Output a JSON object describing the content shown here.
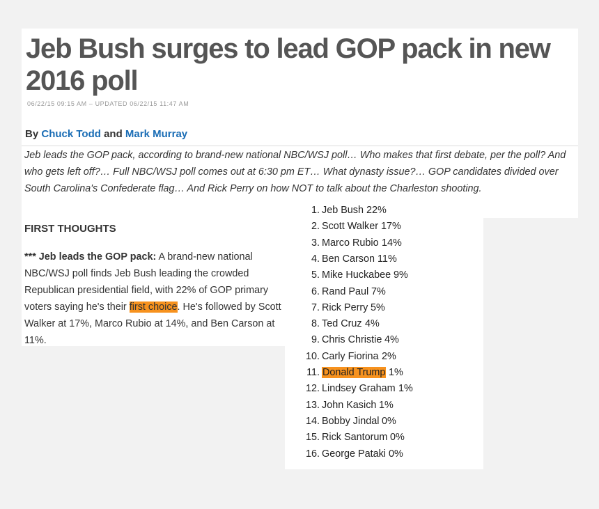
{
  "article": {
    "headline": "Jeb Bush surges to lead GOP pack in new 2016 poll",
    "dateline": "06/22/15 09:15 AM – UPDATED 06/22/15 11:47 AM",
    "byline": {
      "prefix": "By",
      "author1": "Chuck Todd",
      "conjunction": "and",
      "author2": "Mark Murray"
    },
    "dek": "Jeb leads the GOP pack, according to brand-new national NBC/WSJ poll… Who makes that first debate, per the poll? And who gets left off?… Full NBC/WSJ poll comes out at 6:30 pm ET… What dynasty issue?… GOP candidates divided over South Carolina's Confederate flag… And Rick Perry on how NOT to talk about the Charleston shooting."
  },
  "body": {
    "section_heading": "FIRST THOUGHTS",
    "lead_bold": "*** Jeb leads the GOP pack:",
    "text_before": " A brand-new national NBC/WSJ poll finds Jeb Bush leading the crowded Republican presidential field, with 22% of GOP primary voters saying he's their ",
    "highlighted": "first choice",
    "text_after": ". He's followed by Scott Walker at 17%, Marco Rubio at 14%, and Ben Carson at 11%."
  },
  "poll": {
    "highlight_color": "#f7921e",
    "rows": [
      {
        "rank": "1.",
        "name": "Jeb Bush",
        "pct": "22%"
      },
      {
        "rank": "2.",
        "name": "Scott Walker",
        "pct": "17%"
      },
      {
        "rank": "3.",
        "name": "Marco Rubio",
        "pct": "14%"
      },
      {
        "rank": "4.",
        "name": "Ben Carson",
        "pct": "11%"
      },
      {
        "rank": "5.",
        "name": "Mike Huckabee",
        "pct": "9%"
      },
      {
        "rank": "6.",
        "name": "Rand Paul",
        "pct": "7%"
      },
      {
        "rank": "7.",
        "name": "Rick Perry",
        "pct": "5%"
      },
      {
        "rank": "8.",
        "name": "Ted Cruz",
        "pct": "4%"
      },
      {
        "rank": "9.",
        "name": "Chris Christie",
        "pct": "4%"
      },
      {
        "rank": "10.",
        "name": "Carly Fiorina",
        "pct": "2%"
      },
      {
        "rank": "11.",
        "name": "Donald Trump",
        "pct": "1%",
        "highlight": true
      },
      {
        "rank": "12.",
        "name": "Lindsey Graham",
        "pct": "1%"
      },
      {
        "rank": "13.",
        "name": "John Kasich",
        "pct": "1%"
      },
      {
        "rank": "14.",
        "name": "Bobby Jindal",
        "pct": "0%"
      },
      {
        "rank": "15.",
        "name": "Rick Santorum",
        "pct": "0%"
      },
      {
        "rank": "16.",
        "name": "George Pataki",
        "pct": "0%"
      }
    ]
  }
}
